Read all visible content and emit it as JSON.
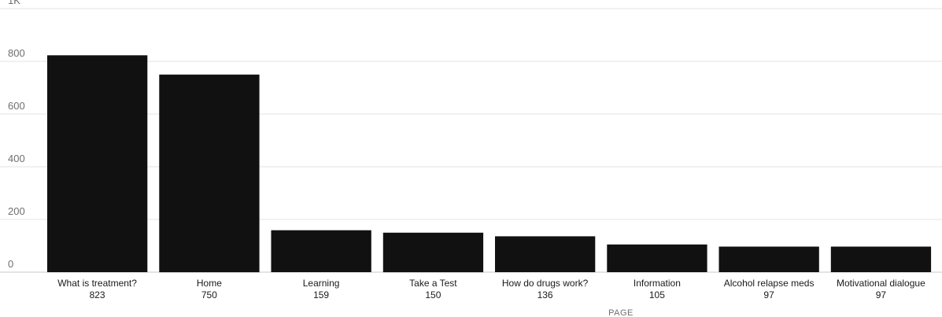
{
  "chart_data": {
    "type": "bar",
    "categories": [
      "What is treatment?",
      "Home",
      "Learning",
      "Take a Test",
      "How do drugs work?",
      "Information",
      "Alcohol relapse meds",
      "Motivational dialogue"
    ],
    "values": [
      823,
      750,
      159,
      150,
      136,
      105,
      97,
      97
    ],
    "value_labels": [
      "823",
      "750",
      "159",
      "150",
      "136",
      "105",
      "97",
      "97"
    ],
    "xlabel": "PAGE",
    "ylabel": "",
    "ylim": [
      0,
      1000
    ],
    "yticks": [
      0,
      200,
      400,
      600,
      800,
      1000
    ],
    "ytick_labels": [
      "0",
      "200",
      "400",
      "600",
      "800",
      "1K"
    ],
    "grid": true,
    "bar_color": "#111111"
  }
}
